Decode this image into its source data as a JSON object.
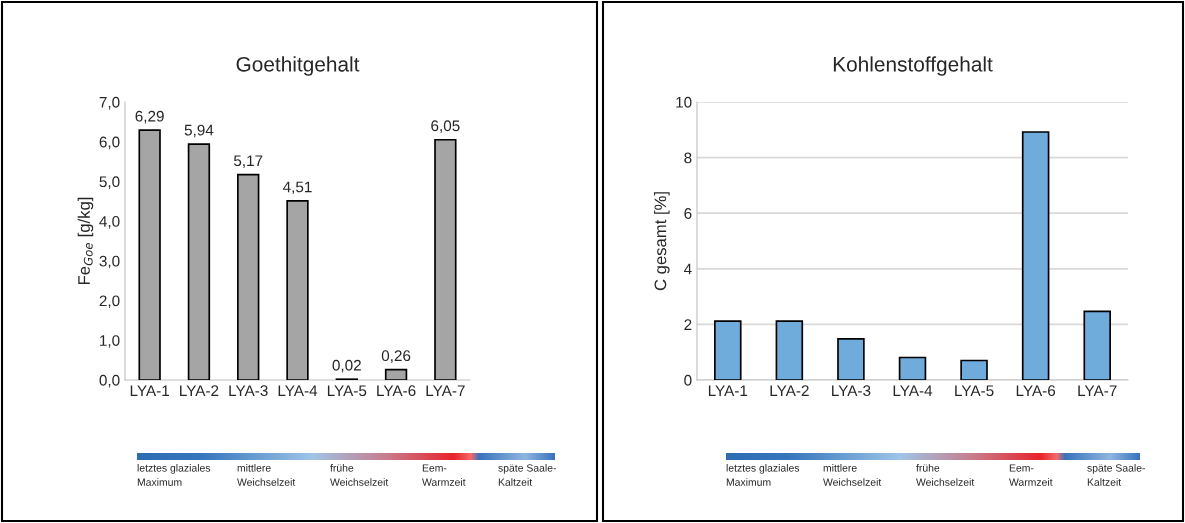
{
  "chart_data": [
    {
      "type": "bar",
      "title": "Goethitgehalt",
      "ylabel": "Fe$_{Goe}$ [g/kg]",
      "categories": [
        "LYA-1",
        "LYA-2",
        "LYA-3",
        "LYA-4",
        "LYA-5",
        "LYA-6",
        "LYA-7"
      ],
      "values": [
        6.29,
        5.94,
        5.17,
        4.51,
        0.02,
        0.26,
        6.05
      ],
      "value_labels": [
        "6,29",
        "5,94",
        "5,17",
        "4,51",
        "0,02",
        "0,26",
        "6,05"
      ],
      "color": "#a5a5a5",
      "ylim": [
        0,
        7
      ],
      "yticks": [
        {
          "value": 0,
          "label": "0,0"
        },
        {
          "value": 1,
          "label": "1,0"
        },
        {
          "value": 2,
          "label": "2,0"
        },
        {
          "value": 3,
          "label": "3,0"
        },
        {
          "value": 4,
          "label": "4,0"
        },
        {
          "value": 5,
          "label": "5,0"
        },
        {
          "value": 6,
          "label": "6,0"
        },
        {
          "value": 7,
          "label": "7,0"
        }
      ],
      "grid": false,
      "annotations": [
        "letztes glaziales\nMaximum",
        "mittlere\nWeichselzeit",
        "frühe\nWeichselzeit",
        "Eem-\nWarmzeit",
        "späte Saale-\nKaltzeit"
      ]
    },
    {
      "type": "bar",
      "title": "Kohlenstoffgehalt",
      "ylabel": "C gesamt [%]",
      "categories": [
        "LYA-1",
        "LYA-2",
        "LYA-3",
        "LYA-4",
        "LYA-5",
        "LYA-6",
        "LYA-7"
      ],
      "values": [
        2.12,
        2.12,
        1.48,
        0.81,
        0.7,
        8.92,
        2.47
      ],
      "color": "#6fabdb",
      "ylim": [
        0,
        10
      ],
      "yticks": [
        0,
        2,
        4,
        6,
        8,
        10
      ],
      "grid": "y",
      "annotations": [
        "letztes glaziales\nMaximum",
        "mittlere\nWeichselzeit",
        "frühe\nWeichselzeit",
        "Eem-\nWarmzeit",
        "späte Saale-\nKaltzeit"
      ]
    }
  ]
}
